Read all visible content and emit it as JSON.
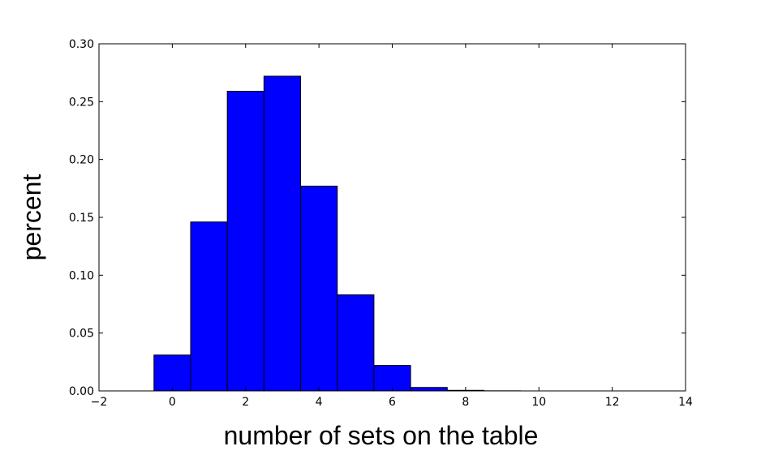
{
  "chart_data": {
    "type": "bar",
    "subtype": "histogram",
    "bin_width": 1,
    "categories": [
      0,
      1,
      2,
      3,
      4,
      5,
      6,
      7,
      8,
      9,
      10,
      11,
      12,
      13
    ],
    "values": [
      0.031,
      0.146,
      0.259,
      0.272,
      0.177,
      0.083,
      0.022,
      0.003,
      0.0005,
      0.0001,
      0.0,
      0.0,
      0.0,
      0.0
    ],
    "xlabel": "number of sets on the table",
    "ylabel": "percent",
    "xlim": [
      -2,
      14
    ],
    "ylim": [
      0,
      0.3
    ],
    "xticks": [
      "−2",
      "0",
      "2",
      "4",
      "6",
      "8",
      "10",
      "12",
      "14"
    ],
    "yticks": [
      "0.00",
      "0.05",
      "0.10",
      "0.15",
      "0.20",
      "0.25",
      "0.30"
    ],
    "grid": false,
    "legend": "none",
    "bar_color": "#0000ff",
    "edge_color": "#000000"
  }
}
